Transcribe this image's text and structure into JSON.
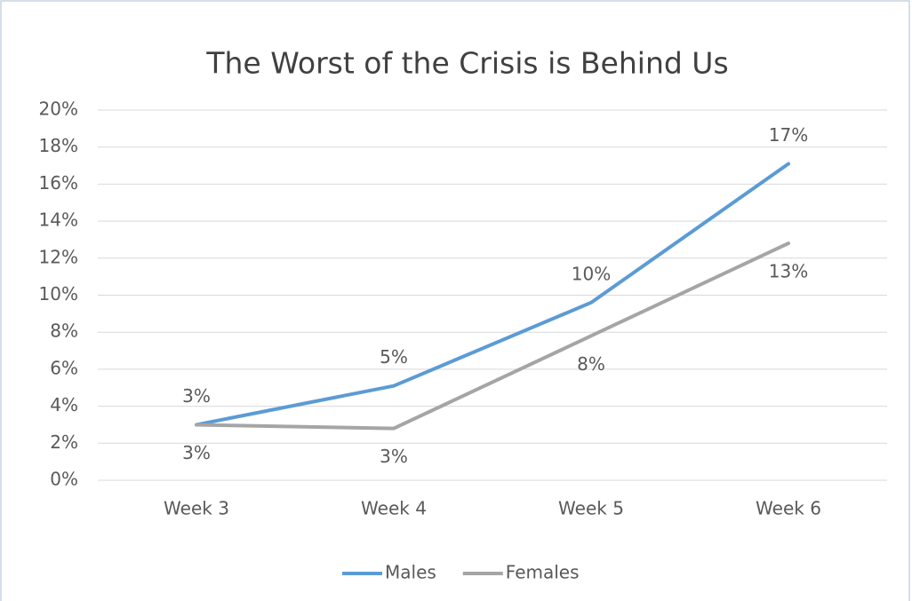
{
  "chart_data": {
    "type": "line",
    "title": "The Worst of the Crisis is Behind Us",
    "categories": [
      "Week 3",
      "Week 4",
      "Week 5",
      "Week 6"
    ],
    "series": [
      {
        "name": "Males",
        "color": "#5b9bd5",
        "values": [
          3,
          5.1,
          9.6,
          17.1
        ],
        "value_labels": [
          "3%",
          "5%",
          "10%",
          "17%"
        ]
      },
      {
        "name": "Females",
        "color": "#a5a5a5",
        "values": [
          3,
          2.8,
          7.8,
          12.8
        ],
        "value_labels": [
          "3%",
          "3%",
          "8%",
          "13%"
        ]
      }
    ],
    "ylim": [
      0,
      20
    ],
    "yticks": [
      {
        "value": 0,
        "label": "0%"
      },
      {
        "value": 2,
        "label": "2%"
      },
      {
        "value": 4,
        "label": "4%"
      },
      {
        "value": 6,
        "label": "6%"
      },
      {
        "value": 8,
        "label": "8%"
      },
      {
        "value": 10,
        "label": "10%"
      },
      {
        "value": 12,
        "label": "12%"
      },
      {
        "value": 14,
        "label": "14%"
      },
      {
        "value": 16,
        "label": "16%"
      },
      {
        "value": 18,
        "label": "18%"
      },
      {
        "value": 20,
        "label": "20%"
      }
    ],
    "grid": true,
    "legend": "bottom"
  }
}
